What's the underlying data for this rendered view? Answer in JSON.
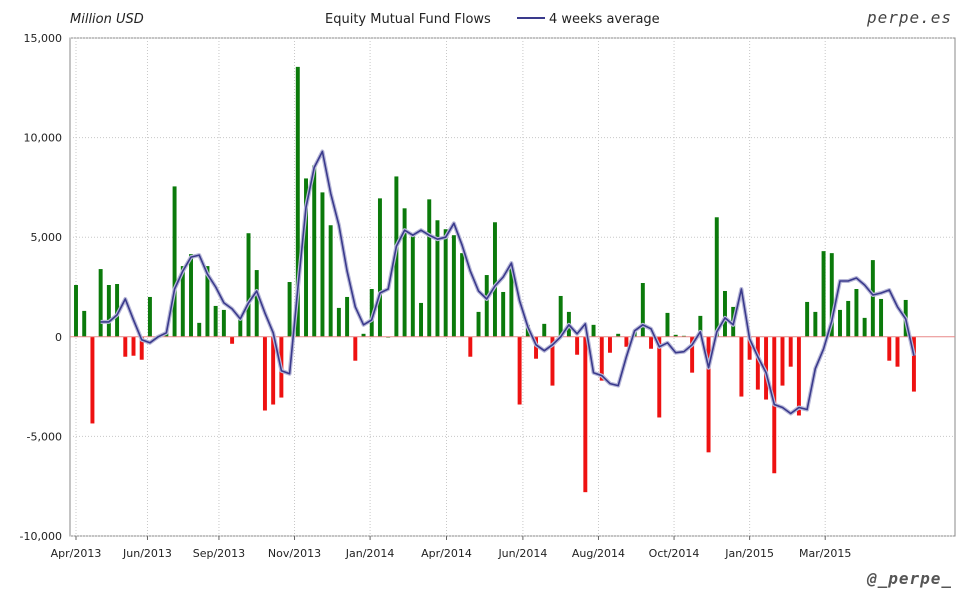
{
  "header": {
    "unit_label": "Million USD",
    "title": "Equity Mutual Fund Flows",
    "legend_line": "4 weeks average",
    "brand": "perpe.es",
    "handle": "@_perpe_"
  },
  "colors": {
    "positive": "#0b7a0b",
    "negative": "#ee1111",
    "average": "#3a3a8c",
    "grid": "#c8c8c8",
    "zero": "#e88888"
  },
  "chart_data": {
    "type": "bar",
    "title": "Equity Mutual Fund Flows",
    "ylabel": "Million USD",
    "ylim": [
      -10000,
      15000
    ],
    "yticks": [
      15000,
      10000,
      5000,
      0,
      -5000,
      -10000
    ],
    "ytick_labels": [
      "15,000",
      "10,000",
      "5,000",
      "0",
      "-5,000",
      "-10,000"
    ],
    "xlim": [
      0,
      107
    ],
    "xticks": [
      {
        "x": 0,
        "label": "Apr/2013"
      },
      {
        "x": 8.7,
        "label": "Jun/2013"
      },
      {
        "x": 17.4,
        "label": "Sep/2013"
      },
      {
        "x": 26.6,
        "label": "Nov/2013"
      },
      {
        "x": 35.8,
        "label": "Jan/2014"
      },
      {
        "x": 45.1,
        "label": "Apr/2014"
      },
      {
        "x": 54.4,
        "label": "Jun/2014"
      },
      {
        "x": 63.6,
        "label": "Aug/2014"
      },
      {
        "x": 72.8,
        "label": "Oct/2014"
      },
      {
        "x": 82.0,
        "label": "Jan/2015"
      },
      {
        "x": 91.2,
        "label": "Mar/2015"
      }
    ],
    "grid": true,
    "legend": "top-center",
    "series": [
      {
        "name": "Equity Mutual Fund Flows",
        "kind": "bar",
        "values": [
          2600,
          1300,
          -4350,
          3400,
          2600,
          2650,
          -1000,
          -950,
          -1150,
          2000,
          0,
          200,
          7550,
          3550,
          4150,
          700,
          3550,
          1550,
          1350,
          -350,
          1100,
          5200,
          3350,
          -3700,
          -3400,
          -3050,
          2750,
          13550,
          7950,
          8600,
          7250,
          5600,
          1450,
          2000,
          -1200,
          150,
          2400,
          6950,
          0,
          8050,
          6450,
          5200,
          1700,
          6900,
          5850,
          5400,
          5100,
          4200,
          -1000,
          1250,
          3100,
          5750,
          2250,
          3650,
          -3400,
          600,
          -1100,
          650,
          -2450,
          2050,
          1250,
          -900,
          -7800,
          600,
          -2200,
          -800,
          150,
          -500,
          300,
          2700,
          -600,
          -4050,
          1200,
          100,
          50,
          -1800,
          1050,
          -5800,
          6000,
          2300,
          1500,
          -3000,
          -1150,
          -2650,
          -3150,
          -6850,
          -2450,
          -1500,
          -3950,
          1750,
          1250,
          4300,
          4200,
          1350,
          1800,
          2400,
          950,
          3850,
          1900,
          -1200,
          -1500,
          1850,
          -2750
        ]
      },
      {
        "name": "4 weeks average",
        "kind": "line",
        "values": [
          null,
          null,
          null,
          750,
          750,
          1100,
          1900,
          850,
          -150,
          -300,
          0,
          200,
          2400,
          3300,
          4000,
          4100,
          3150,
          2500,
          1700,
          1400,
          900,
          1700,
          2300,
          1200,
          200,
          -1700,
          -1850,
          2400,
          6500,
          8500,
          9300,
          7200,
          5600,
          3300,
          1500,
          600,
          850,
          2200,
          2400,
          4550,
          5350,
          5100,
          5350,
          5100,
          4900,
          5000,
          5700,
          4600,
          3300,
          2300,
          1900,
          2550,
          3000,
          3700,
          1800,
          500,
          -400,
          -700,
          -400,
          0,
          600,
          150,
          650,
          -1800,
          -1950,
          -2350,
          -2450,
          -1000,
          300,
          600,
          400,
          -500,
          -300,
          -800,
          -750,
          -400,
          250,
          -1550,
          250,
          950,
          600,
          2400,
          -100,
          -1000,
          -1800,
          -3400,
          -3550,
          -3850,
          -3550,
          -3650,
          -1600,
          -600,
          800,
          2800,
          2800,
          2950,
          2600,
          2100,
          2200,
          2350,
          1500,
          900,
          -950
        ]
      }
    ]
  }
}
